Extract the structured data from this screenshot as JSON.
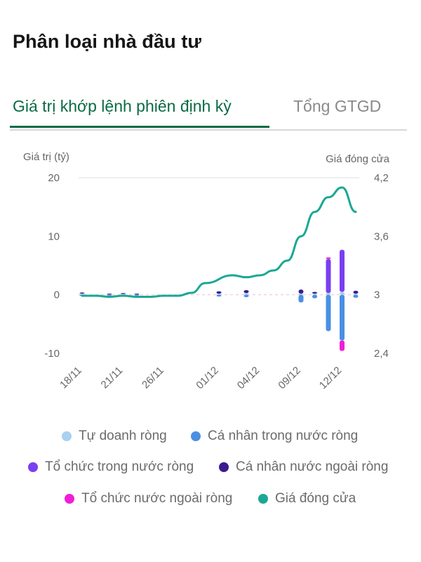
{
  "page": {
    "title": "Phân loại nhà đầu tư",
    "tabs": [
      {
        "label": "Giá trị khớp lệnh phiên định kỳ",
        "active": true
      },
      {
        "label": "Tổng GTGD",
        "active": false
      }
    ]
  },
  "colors": {
    "accent": "#0a6b45",
    "tu_doanh": "#a8d1f2",
    "ca_nhan_trong_nuoc": "#4a90e2",
    "to_chuc_trong_nuoc": "#7a3ff2",
    "ca_nhan_nuoc_ngoai": "#3b1d8f",
    "to_chuc_nuoc_ngoai": "#f01ed8",
    "gia_dong_cua": "#1aa894"
  },
  "chart_data": {
    "type": "bar+line",
    "ylabel_left": "Giá trị (tỷ)",
    "ylabel_right": "Giá đóng cửa",
    "ylim_left": [
      -10,
      20
    ],
    "ylim_right": [
      2.4,
      4.2
    ],
    "yticks_left": [
      "20",
      "10",
      "0",
      "-10"
    ],
    "yticks_right": [
      "4,2",
      "3,6",
      "3",
      "2,4"
    ],
    "xtick_labels": [
      "18/11",
      "21/11",
      "26/11",
      "01/12",
      "04/12",
      "09/12",
      "12/12"
    ],
    "bar_dates": [
      "18/11",
      "20/11",
      "21/11",
      "22/11",
      "25/11",
      "01/12",
      "03/12",
      "04/12",
      "09/12",
      "10/12",
      "11/12",
      "12/12",
      "13/12"
    ],
    "series": [
      {
        "name": "Tự doanh ròng",
        "key": "tu_doanh",
        "values": [
          0.2,
          0.1,
          0.2,
          0.1,
          0.0,
          0.2,
          0.3,
          0.0,
          0.2,
          0.2,
          0.3,
          0.5,
          0.2
        ]
      },
      {
        "name": "Cá nhân trong nước ròng",
        "key": "ca_nhan_trong_nuoc",
        "values": [
          -0.2,
          -0.1,
          -0.1,
          -0.1,
          0.0,
          -0.3,
          -0.4,
          0.0,
          -1.3,
          -0.6,
          -6.2,
          -7.8,
          -0.5
        ]
      },
      {
        "name": "Tổ chức trong nước ròng",
        "key": "to_chuc_trong_nuoc",
        "values": [
          0.0,
          0.0,
          0.0,
          0.0,
          0.0,
          0.0,
          0.0,
          0.0,
          0.0,
          0.0,
          5.8,
          7.2,
          0.0
        ]
      },
      {
        "name": "Cá nhân nước ngoài ròng",
        "key": "ca_nhan_nuoc_ngoai",
        "values": [
          0.2,
          0.1,
          0.1,
          0.1,
          0.0,
          0.4,
          0.5,
          0.0,
          0.7,
          0.3,
          0.0,
          0.0,
          0.5
        ]
      },
      {
        "name": "Tổ chức nước ngoài ròng",
        "key": "to_chuc_nuoc_ngoai",
        "values": [
          0.0,
          0.0,
          0.0,
          0.0,
          0.0,
          0.0,
          0.0,
          0.0,
          0.0,
          0.0,
          0.3,
          -1.8,
          0.0
        ]
      }
    ],
    "close_price": {
      "name": "Giá đóng cửa",
      "dates": [
        "18/11",
        "19/11",
        "20/11",
        "21/11",
        "22/11",
        "25/11",
        "26/11",
        "27/11",
        "28/11",
        "29/11",
        "02/12",
        "03/12",
        "04/12",
        "05/12",
        "06/12",
        "09/12",
        "10/12",
        "11/12",
        "12/12",
        "13/12"
      ],
      "values": [
        2.99,
        2.99,
        2.98,
        2.99,
        2.98,
        2.98,
        2.99,
        2.99,
        3.02,
        3.12,
        3.2,
        3.18,
        3.2,
        3.25,
        3.35,
        3.6,
        3.85,
        4.0,
        4.1,
        3.85
      ]
    },
    "grid": false,
    "legend_position": "bottom"
  }
}
